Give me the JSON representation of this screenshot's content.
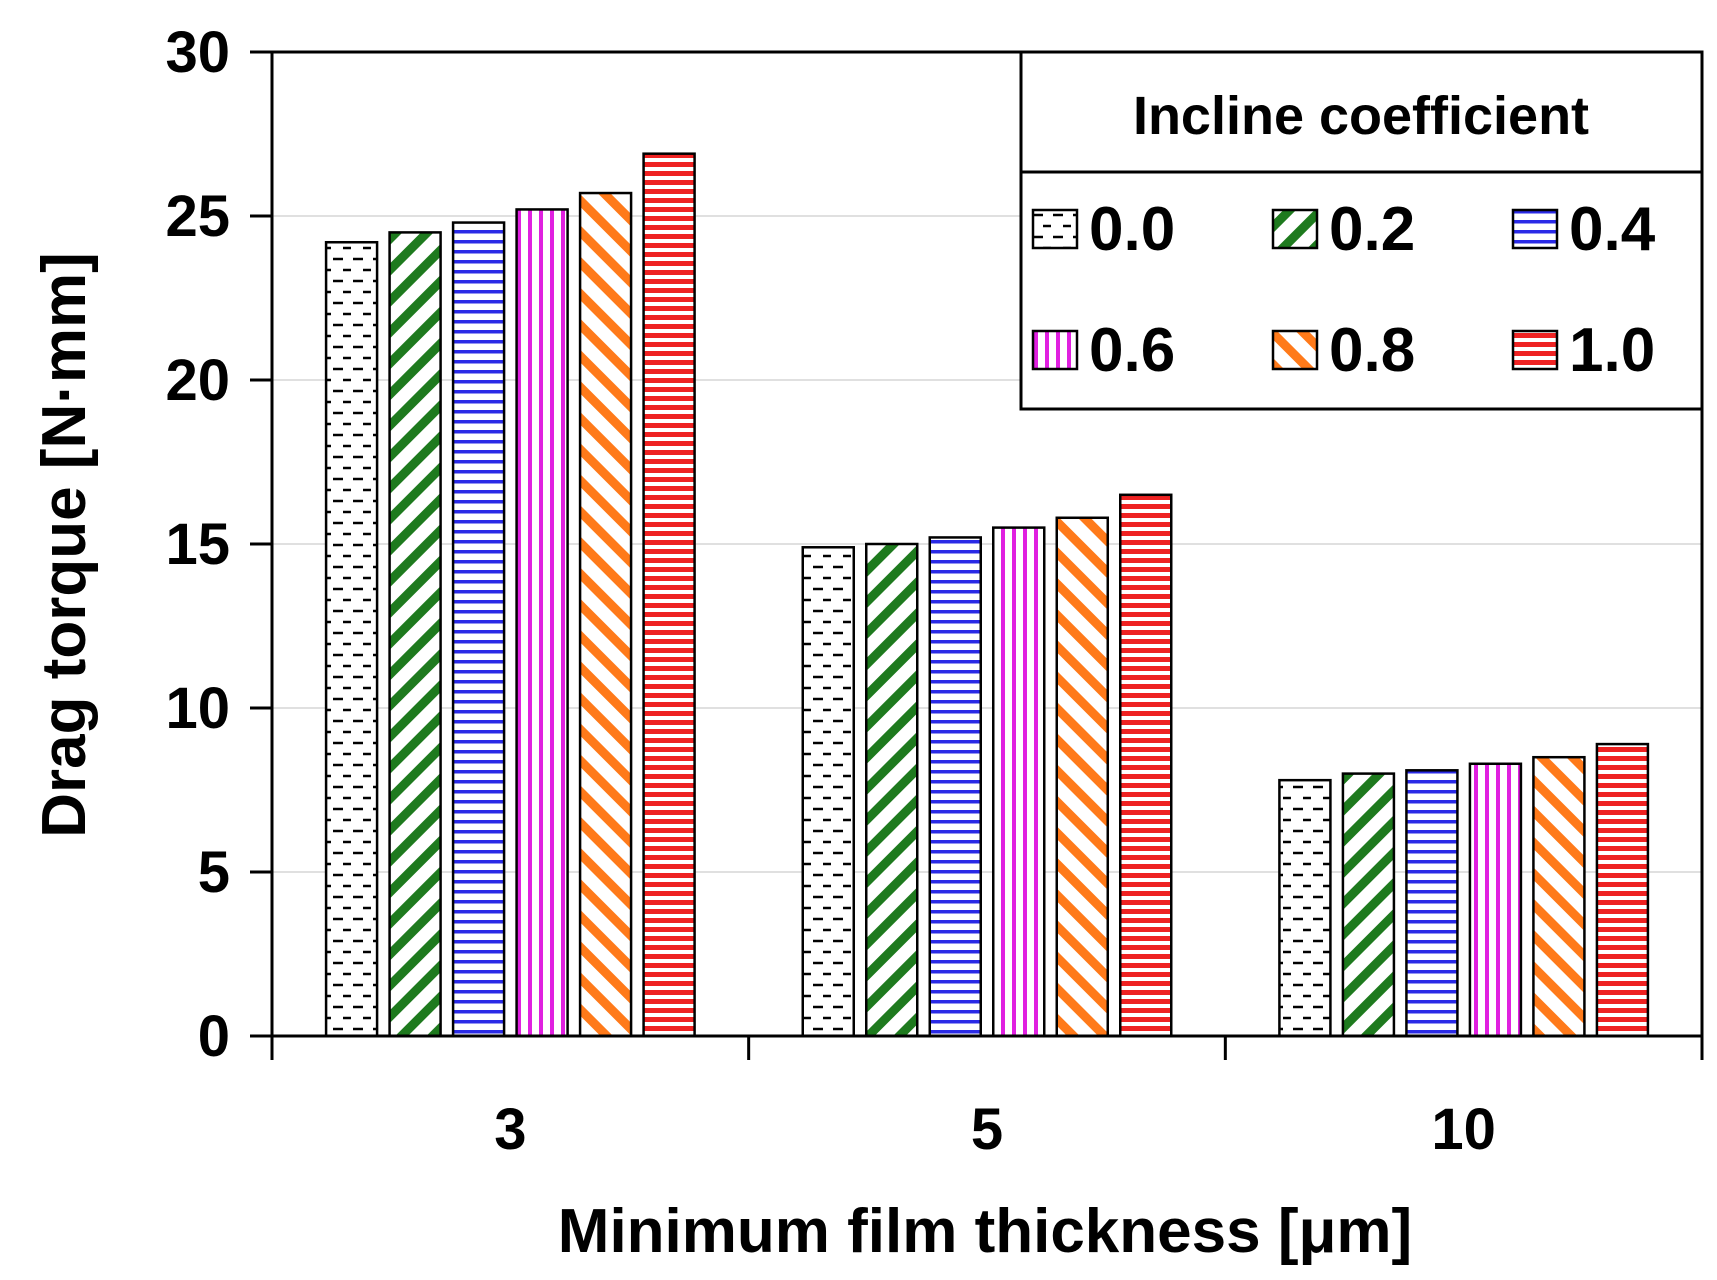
{
  "chart_data": {
    "type": "bar",
    "title": "",
    "xlabel": "Minimum film thickness [μm]",
    "ylabel": "Drag torque [N·mm]",
    "categories": [
      "3",
      "5",
      "10"
    ],
    "ylim": [
      0,
      30
    ],
    "yticks": [
      "0",
      "5",
      "10",
      "15",
      "20",
      "25",
      "30"
    ],
    "grid": true,
    "legend": {
      "title": "Incline coefficient",
      "placement": "top-right"
    },
    "series": [
      {
        "name": "0.0",
        "values": [
          24.2,
          14.9,
          7.8
        ],
        "color": "#000000",
        "pattern": "dashes"
      },
      {
        "name": "0.2",
        "values": [
          24.5,
          15.0,
          8.0
        ],
        "color": "#1e7a1e",
        "pattern": "diagonal-up"
      },
      {
        "name": "0.4",
        "values": [
          24.8,
          15.2,
          8.1
        ],
        "color": "#2a2ae6",
        "pattern": "horizontal"
      },
      {
        "name": "0.6",
        "values": [
          25.2,
          15.5,
          8.3
        ],
        "color": "#e020e0",
        "pattern": "vertical"
      },
      {
        "name": "0.8",
        "values": [
          25.7,
          15.8,
          8.5
        ],
        "color": "#ff7a1a",
        "pattern": "diagonal-down"
      },
      {
        "name": "1.0",
        "values": [
          26.9,
          16.5,
          8.9
        ],
        "color": "#ee2222",
        "pattern": "horizontal-dense"
      }
    ]
  }
}
